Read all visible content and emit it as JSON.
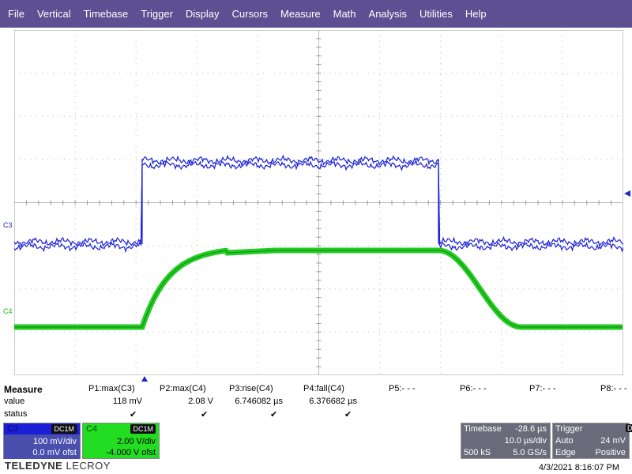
{
  "menu": [
    "File",
    "Vertical",
    "Timebase",
    "Trigger",
    "Display",
    "Cursors",
    "Measure",
    "Math",
    "Analysis",
    "Utilities",
    "Help"
  ],
  "channels": {
    "c3_label": "C3",
    "c4_label": "C4"
  },
  "colors": {
    "menu_bg": "#5d4f91",
    "c3": "#1a28c8",
    "c4": "#22bb22"
  },
  "measure": {
    "title": "Measure",
    "row_value_label": "value",
    "row_status_label": "status",
    "params": [
      {
        "name": "P1:max(C3)",
        "value": "118 mV",
        "status": "✔"
      },
      {
        "name": "P2:max(C4)",
        "value": "2.08 V",
        "status": "✔"
      },
      {
        "name": "P3:rise(C4)",
        "value": "6.746082 µs",
        "status": "✔"
      },
      {
        "name": "P4:fall(C4)",
        "value": "6.376682 µs",
        "status": "✔"
      },
      {
        "name": "P5:- - -",
        "value": "",
        "status": ""
      },
      {
        "name": "P6:- - -",
        "value": "",
        "status": ""
      },
      {
        "name": "P7:- - -",
        "value": "",
        "status": ""
      },
      {
        "name": "P8:- - -",
        "value": "",
        "status": ""
      }
    ]
  },
  "c3box": {
    "name": "C3",
    "coupling": "DC1M",
    "vdiv": "100 mV/div",
    "offset": "0.0 mV ofst"
  },
  "c4box": {
    "name": "C4",
    "coupling": "DC1M",
    "vdiv": "2.00 V/div",
    "offset": "-4.000 V ofst"
  },
  "timebase": {
    "label": "Timebase",
    "delay": "-28.6 µs",
    "tdiv": "10.0 µs/div",
    "samples": "500 kS",
    "rate": "5.0 GS/s"
  },
  "trigger": {
    "label": "Trigger",
    "src": "C3",
    "coupling": "DC",
    "mode": "Auto",
    "level": "24 mV",
    "type": "Edge",
    "slope": "Positive"
  },
  "brand": {
    "a": "TELEDYNE",
    "b": "LECROY"
  },
  "datetime": "4/3/2021 8:16:07 PM"
}
